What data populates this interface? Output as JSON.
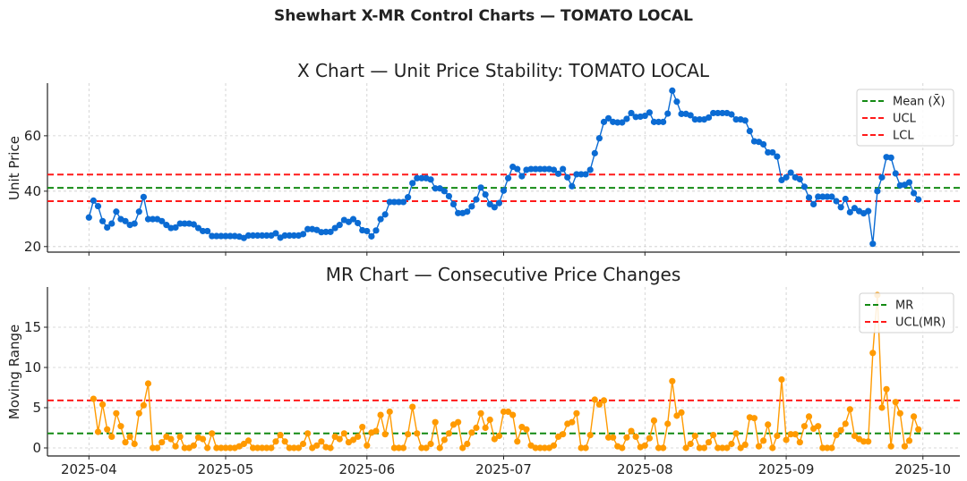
{
  "title": "Shewhart X-MR Control Charts — TOMATO LOCAL",
  "chart_data": [
    {
      "type": "line",
      "title": "X Chart — Unit Price Stability: TOMATO LOCAL",
      "xlabel": "",
      "ylabel": "Unit Price",
      "ylim": [
        18,
        79
      ],
      "yticks": [
        20,
        40,
        60
      ],
      "xticks": [
        "2025-04",
        "2025-05",
        "2025-06",
        "2025-07",
        "2025-08",
        "2025-09",
        "2025-10"
      ],
      "grid": true,
      "legend_position": "top-right",
      "dates": {
        "start": "2025-04-01",
        "end": "2025-09-30",
        "frequency": "daily"
      },
      "series": [
        {
          "color": "#0b6bd3",
          "marker": "circle",
          "values": [
            30.5,
            36.6,
            34.6,
            29.2,
            26.9,
            28.3,
            32.6,
            29.9,
            29.2,
            27.8,
            28.3,
            32.6,
            37.9,
            29.9,
            29.9,
            29.9,
            29.2,
            27.8,
            26.7,
            26.9,
            28.3,
            28.3,
            28.3,
            28.0,
            26.7,
            25.6,
            25.6,
            23.8,
            23.8,
            23.8,
            23.8,
            23.8,
            23.8,
            23.6,
            23.1,
            24.0,
            24.0,
            24.0,
            24.0,
            24.0,
            24.0,
            24.8,
            23.2,
            24.0,
            24.0,
            24.0,
            24.0,
            24.5,
            26.3,
            26.3,
            26.0,
            25.2,
            25.3,
            25.3,
            26.7,
            27.8,
            29.6,
            28.9,
            29.9,
            28.5,
            25.9,
            25.6,
            23.7,
            25.8,
            29.9,
            31.6,
            36.1,
            36.1,
            36.1,
            36.1,
            37.8,
            42.9,
            44.7,
            44.7,
            44.7,
            44.2,
            41.0,
            41.0,
            40.0,
            38.2,
            35.3,
            32.1,
            32.1,
            32.6,
            34.5,
            37.0,
            41.3,
            38.8,
            35.3,
            34.2,
            35.7,
            40.2,
            44.7,
            48.8,
            48.0,
            45.4,
            47.7,
            48.0,
            48.0,
            48.0,
            48.0,
            48.0,
            47.7,
            46.3,
            48.0,
            45.0,
            41.8,
            46.1,
            46.1,
            46.1,
            47.7,
            53.7,
            59.1,
            65.0,
            66.3,
            65.0,
            64.8,
            64.8,
            66.1,
            68.2,
            66.8,
            66.9,
            67.2,
            68.4,
            65.0,
            65.0,
            65.0,
            68.0,
            76.3,
            72.3,
            67.9,
            67.9,
            67.4,
            65.9,
            65.9,
            65.9,
            66.6,
            68.2,
            68.2,
            68.2,
            68.2,
            67.7,
            65.9,
            65.9,
            65.5,
            61.7,
            58.0,
            57.8,
            56.9,
            54.0,
            54.0,
            52.5,
            44.0,
            45.0,
            46.7,
            45.0,
            44.3,
            41.6,
            37.7,
            35.3,
            38.0,
            38.0,
            38.0,
            38.0,
            36.4,
            34.2,
            37.2,
            32.4,
            33.9,
            32.8,
            32.0,
            32.8,
            21.0,
            40.0,
            45.0,
            52.3,
            52.1,
            46.4,
            42.1,
            42.3,
            43.2,
            39.3,
            37.0
          ]
        }
      ],
      "reference_lines": [
        {
          "name": "Mean (X̄)",
          "value": 41.2,
          "color": "#138a13"
        },
        {
          "name": "UCL",
          "value": 46.0,
          "color": "#ff1a1a"
        },
        {
          "name": "LCL",
          "value": 36.4,
          "color": "#ff1a1a"
        }
      ]
    },
    {
      "type": "line",
      "title": "MR Chart — Consecutive Price Changes",
      "xlabel": "",
      "ylabel": "Moving Range",
      "ylim": [
        -1,
        20
      ],
      "yticks": [
        0,
        5,
        10,
        15
      ],
      "xticks": [
        "2025-04",
        "2025-05",
        "2025-06",
        "2025-07",
        "2025-08",
        "2025-09",
        "2025-10"
      ],
      "grid": true,
      "legend_position": "top-right",
      "dates": {
        "start": "2025-04-02",
        "end": "2025-09-30",
        "frequency": "daily"
      },
      "series": [
        {
          "color": "#ff9a00",
          "marker": "circle",
          "values": [
            6.1,
            2.0,
            5.4,
            2.3,
            1.4,
            4.3,
            2.7,
            0.7,
            1.4,
            0.5,
            4.3,
            5.3,
            8.0,
            0,
            0,
            0.7,
            1.4,
            1.1,
            0.2,
            1.4,
            0,
            0,
            0.3,
            1.3,
            1.1,
            0,
            1.8,
            0,
            0,
            0,
            0,
            0,
            0.2,
            0.5,
            0.9,
            0,
            0,
            0,
            0,
            0,
            0.8,
            1.6,
            0.8,
            0,
            0,
            0,
            0.5,
            1.8,
            0,
            0.3,
            0.8,
            0.1,
            0,
            1.4,
            1.1,
            1.8,
            0.7,
            1.0,
            1.4,
            2.6,
            0.3,
            1.9,
            2.1,
            4.1,
            1.7,
            4.5,
            0,
            0,
            0,
            1.7,
            5.1,
            1.8,
            0,
            0,
            0.5,
            3.2,
            0,
            1.0,
            1.8,
            2.9,
            3.2,
            0,
            0.5,
            1.9,
            2.5,
            4.3,
            2.5,
            3.5,
            1.1,
            1.5,
            4.5,
            4.5,
            4.1,
            0.8,
            2.6,
            2.3,
            0.3,
            0,
            0,
            0,
            0,
            0.3,
            1.4,
            1.7,
            3.0,
            3.2,
            4.3,
            0,
            0,
            1.6,
            6.0,
            5.4,
            5.9,
            1.3,
            1.3,
            0.2,
            0,
            1.3,
            2.1,
            1.4,
            0.1,
            0.3,
            1.2,
            3.4,
            0,
            0,
            3.0,
            8.3,
            4.0,
            4.4,
            0,
            0.5,
            1.5,
            0,
            0,
            0.7,
            1.6,
            0,
            0,
            0,
            0.5,
            1.8,
            0,
            0.4,
            3.8,
            3.7,
            0.2,
            0.9,
            2.9,
            0,
            1.5,
            8.5,
            1.0,
            1.7,
            1.7,
            0.7,
            2.7,
            3.9,
            2.4,
            2.7,
            0,
            0,
            0,
            1.6,
            2.2,
            3.0,
            4.8,
            1.5,
            1.1,
            0.8,
            0.8,
            11.8,
            19.0,
            5.0,
            7.3,
            0.2,
            5.7,
            4.3,
            0.2,
            0.9,
            3.9,
            2.3
          ]
        }
      ],
      "reference_lines": [
        {
          "name": "MR",
          "value": 1.8,
          "color": "#138a13"
        },
        {
          "name": "UCL(MR)",
          "value": 5.9,
          "color": "#ff1a1a"
        }
      ]
    }
  ]
}
